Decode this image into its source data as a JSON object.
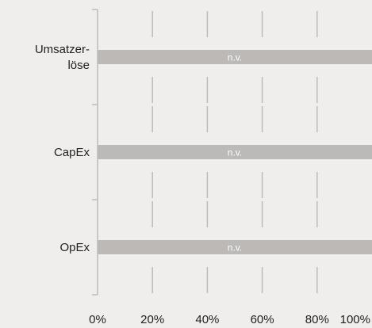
{
  "chart_data": {
    "type": "bar",
    "orientation": "horizontal",
    "categories": [
      "Umsatzer-\nlöse",
      "CapEx",
      "OpEx"
    ],
    "series": [
      {
        "values": [
          100,
          100,
          100
        ],
        "labels": [
          "n.v.",
          "n.v.",
          "n.v."
        ]
      }
    ],
    "xticks": [
      "0%",
      "20%",
      "40%",
      "60%",
      "80%",
      "100%"
    ],
    "xlim": [
      0,
      100
    ],
    "grid": true,
    "legend": "none"
  },
  "colors": {
    "background": "#efeeed",
    "bar": "#bcb9b7",
    "grid": "#bdbbb9",
    "text": "#1f1f1f",
    "bar_label": "#ffffff"
  }
}
